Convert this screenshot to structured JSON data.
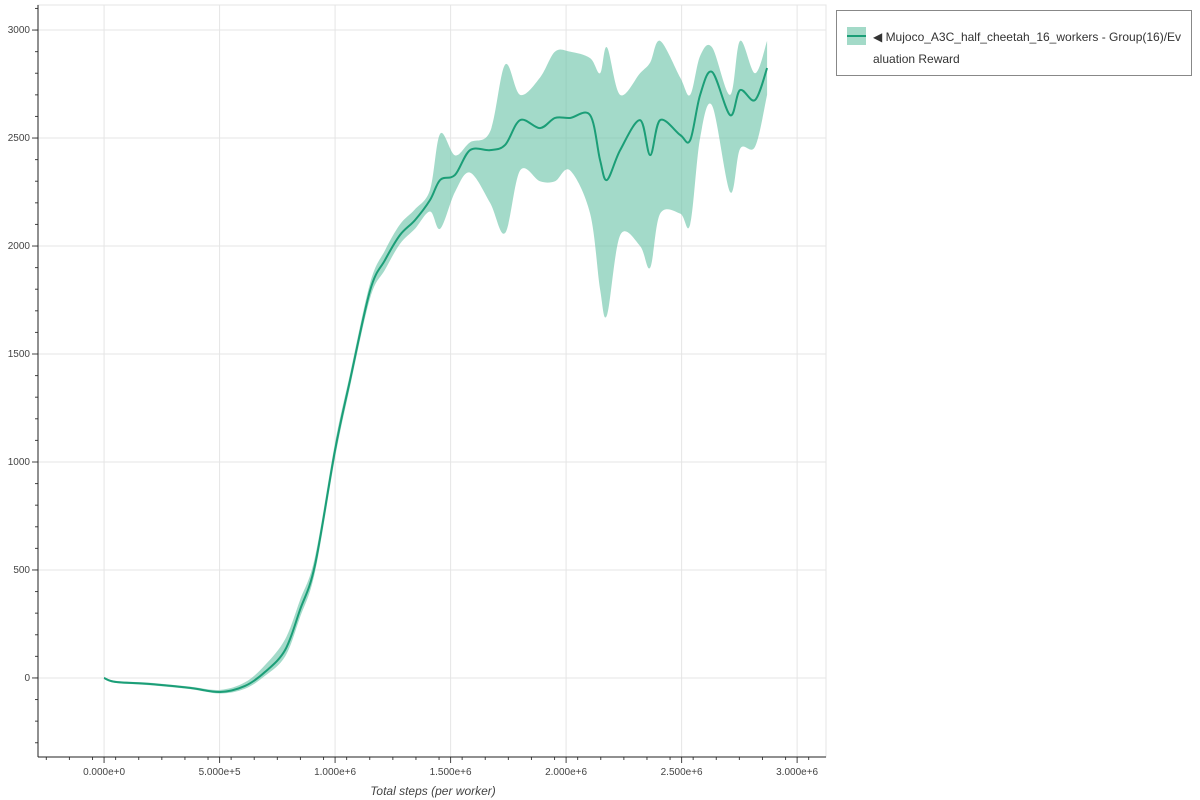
{
  "chart_data": {
    "type": "area",
    "title": "",
    "xlabel": "Total steps (per worker)",
    "ylabel": "",
    "xlim": [
      -286000,
      3125000
    ],
    "ylim": [
      -366,
      3116
    ],
    "grid": true,
    "legend_position": "top-right outside",
    "x_ticks": [
      0,
      500000,
      1000000,
      1500000,
      2000000,
      2500000,
      3000000
    ],
    "x_tick_labels": [
      "0.000e+0",
      "5.000e+5",
      "1.000e+6",
      "1.500e+6",
      "2.000e+6",
      "2.500e+6",
      "3.000e+6"
    ],
    "y_ticks": [
      0,
      500,
      1000,
      1500,
      2000,
      2500,
      3000
    ],
    "y_tick_labels": [
      "0",
      "500",
      "1000",
      "1500",
      "2000",
      "2500",
      "3000"
    ],
    "colors": {
      "line": "#1b9e77",
      "band": "#66c2a5"
    },
    "series": [
      {
        "name": "◀ Mujoco_A3C_half_cheetah_16_workers - Group(16)/Evaluation Reward",
        "x": [
          0,
          48000,
          199000,
          372000,
          502000,
          610000,
          697000,
          784000,
          848000,
          913000,
          1000000,
          1065000,
          1152000,
          1216000,
          1281000,
          1346000,
          1411000,
          1455000,
          1519000,
          1584000,
          1671000,
          1736000,
          1801000,
          1887000,
          1952000,
          2017000,
          2104000,
          2147000,
          2177000,
          2234000,
          2320000,
          2364000,
          2407000,
          2494000,
          2537000,
          2580000,
          2632000,
          2710000,
          2753000,
          2818000,
          2870000
        ],
        "mean": [
          0,
          -18,
          -28,
          -46,
          -65,
          -37,
          28,
          130,
          315,
          523,
          1056,
          1380,
          1796,
          1935,
          2051,
          2120,
          2213,
          2306,
          2329,
          2444,
          2444,
          2468,
          2583,
          2546,
          2593,
          2593,
          2606,
          2398,
          2306,
          2444,
          2583,
          2421,
          2583,
          2514,
          2490,
          2699,
          2806,
          2606,
          2722,
          2676,
          2824
        ],
        "upper": [
          5,
          -13,
          -22,
          -40,
          -55,
          -20,
          60,
          180,
          360,
          560,
          1090,
          1410,
          1830,
          1980,
          2100,
          2170,
          2260,
          2520,
          2420,
          2480,
          2530,
          2840,
          2700,
          2780,
          2900,
          2900,
          2870,
          2800,
          2920,
          2700,
          2800,
          2850,
          2950,
          2780,
          2700,
          2880,
          2920,
          2700,
          2950,
          2800,
          2950
        ],
        "lower": [
          -5,
          -23,
          -34,
          -52,
          -72,
          -50,
          10,
          100,
          280,
          490,
          1020,
          1350,
          1760,
          1890,
          2010,
          2080,
          2160,
          2080,
          2250,
          2340,
          2200,
          2060,
          2350,
          2300,
          2300,
          2350,
          2150,
          1800,
          1680,
          2050,
          2000,
          1900,
          2150,
          2150,
          2100,
          2500,
          2650,
          2250,
          2450,
          2460,
          2700
        ]
      }
    ]
  }
}
